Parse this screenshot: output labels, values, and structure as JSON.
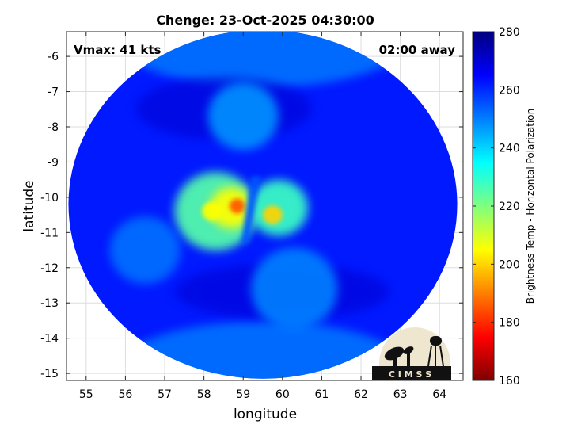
{
  "chart_data": {
    "type": "heatmap",
    "title": "Chenge: 23-Oct-2025 04:30:00",
    "xlabel": "longitude",
    "ylabel": "latitude",
    "xlim": [
      54.5,
      64.6
    ],
    "ylim": [
      -15.2,
      -5.3
    ],
    "xticks": [
      55,
      56,
      57,
      58,
      59,
      60,
      61,
      62,
      63,
      64
    ],
    "yticks": [
      -6,
      -7,
      -8,
      -9,
      -10,
      -11,
      -12,
      -13,
      -14,
      -15
    ],
    "grid": true,
    "annotations": {
      "vmax": "Vmax: 41 kts",
      "away": "02:00 away"
    },
    "colorbar": {
      "label": "Brightness Temp - Horizontal Polarization",
      "range": [
        160,
        280
      ],
      "ticks": [
        160,
        180,
        200,
        220,
        240,
        260,
        280
      ],
      "colors": [
        "#7f0000",
        "#ff0000",
        "#ff7f00",
        "#ffff00",
        "#7fff7f",
        "#00ffff",
        "#007fff",
        "#0000ff",
        "#00007f"
      ]
    },
    "swath": {
      "center": [
        59.5,
        -10.2
      ],
      "radius_lon": 4.95,
      "radius_lat": 4.95,
      "background_value": 262
    },
    "features": [
      {
        "lon": 58.3,
        "lat": -10.4,
        "value": 225,
        "radius": 1.05
      },
      {
        "lon": 58.7,
        "lat": -10.3,
        "value": 205,
        "radius": 0.55
      },
      {
        "lon": 58.85,
        "lat": -10.25,
        "value": 185,
        "radius": 0.2
      },
      {
        "lon": 58.2,
        "lat": -10.4,
        "value": 205,
        "radius": 0.25
      },
      {
        "lon": 59.9,
        "lat": -10.3,
        "value": 228,
        "radius": 0.75
      },
      {
        "lon": 59.75,
        "lat": -10.5,
        "value": 200,
        "radius": 0.25
      },
      {
        "lon": 59.0,
        "lat": -7.7,
        "value": 248,
        "radius": 0.9
      },
      {
        "lon": 60.3,
        "lat": -12.6,
        "value": 250,
        "radius": 1.1
      },
      {
        "lon": 56.5,
        "lat": -11.5,
        "value": 252,
        "radius": 0.9
      }
    ]
  },
  "logo": {
    "text": "C I M S S"
  }
}
